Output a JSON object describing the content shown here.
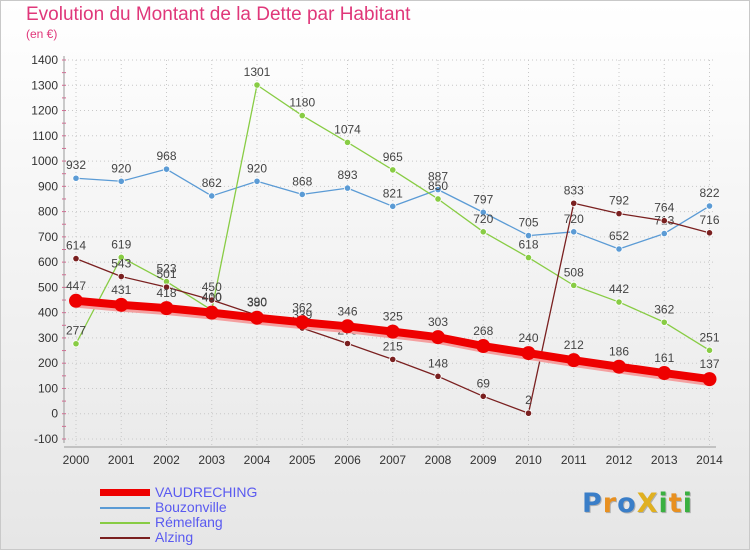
{
  "title": "Evolution du Montant de la Dette par Habitant",
  "unit": "(en €)",
  "logo": {
    "text": "ProXiti",
    "colors": [
      "#3a7ec8",
      "#e89020",
      "#3a7ec8",
      "#e0b020",
      "#3ab040",
      "#e89020",
      "#3ab040"
    ]
  },
  "chart_data": {
    "type": "line",
    "title": "Evolution du Montant de la Dette par Habitant",
    "ylim": [
      -100,
      1400
    ],
    "yticks": [
      -100,
      0,
      100,
      200,
      300,
      400,
      500,
      600,
      700,
      800,
      900,
      1000,
      1100,
      1200,
      1300,
      1400
    ],
    "x": [
      "2000",
      "2001",
      "2002",
      "2003",
      "2004",
      "2005",
      "2006",
      "2007",
      "2008",
      "2009",
      "2010",
      "2011",
      "2012",
      "2013",
      "2014"
    ],
    "legend_position": "bottom-left",
    "series": [
      {
        "name": "VAUDRECHING",
        "color": "#ee0000",
        "values": [
          447,
          431,
          418,
          400,
          380,
          362,
          346,
          325,
          303,
          268,
          240,
          212,
          186,
          161,
          137
        ],
        "labels": [
          "447",
          "431",
          "418",
          "400",
          "380",
          "362",
          "346",
          "325",
          "303",
          "268",
          "240",
          "212",
          "186",
          "161",
          "137"
        ]
      },
      {
        "name": "Bouzonville",
        "color": "#5b9bd5",
        "values": [
          932,
          920,
          968,
          862,
          920,
          868,
          893,
          821,
          887,
          797,
          705,
          720,
          652,
          713,
          822
        ],
        "labels": [
          "932",
          "920",
          "968",
          "862",
          "920",
          "868",
          "893",
          "821",
          "887",
          "797",
          "705",
          "720",
          "652",
          "713",
          "822"
        ]
      },
      {
        "name": "Rémelfang",
        "color": "#88cc44",
        "values": [
          277,
          619,
          523,
          410,
          1301,
          1180,
          1074,
          965,
          850,
          720,
          618,
          508,
          442,
          362,
          251
        ],
        "labels": [
          "277",
          "619",
          "523",
          "410",
          "1301",
          "1180",
          "1074",
          "965",
          "850",
          "720",
          "618",
          "508",
          "442",
          "362",
          "251"
        ]
      },
      {
        "name": "Alzing",
        "color": "#7a2020",
        "values": [
          614,
          543,
          501,
          450,
          390,
          339,
          278,
          215,
          148,
          69,
          2,
          833,
          792,
          764,
          716
        ],
        "labels": [
          "614",
          "543",
          "501",
          "450",
          "390",
          "339",
          "278",
          "215",
          "148",
          "69",
          "2",
          "833",
          "792",
          "764",
          "716"
        ]
      }
    ]
  }
}
